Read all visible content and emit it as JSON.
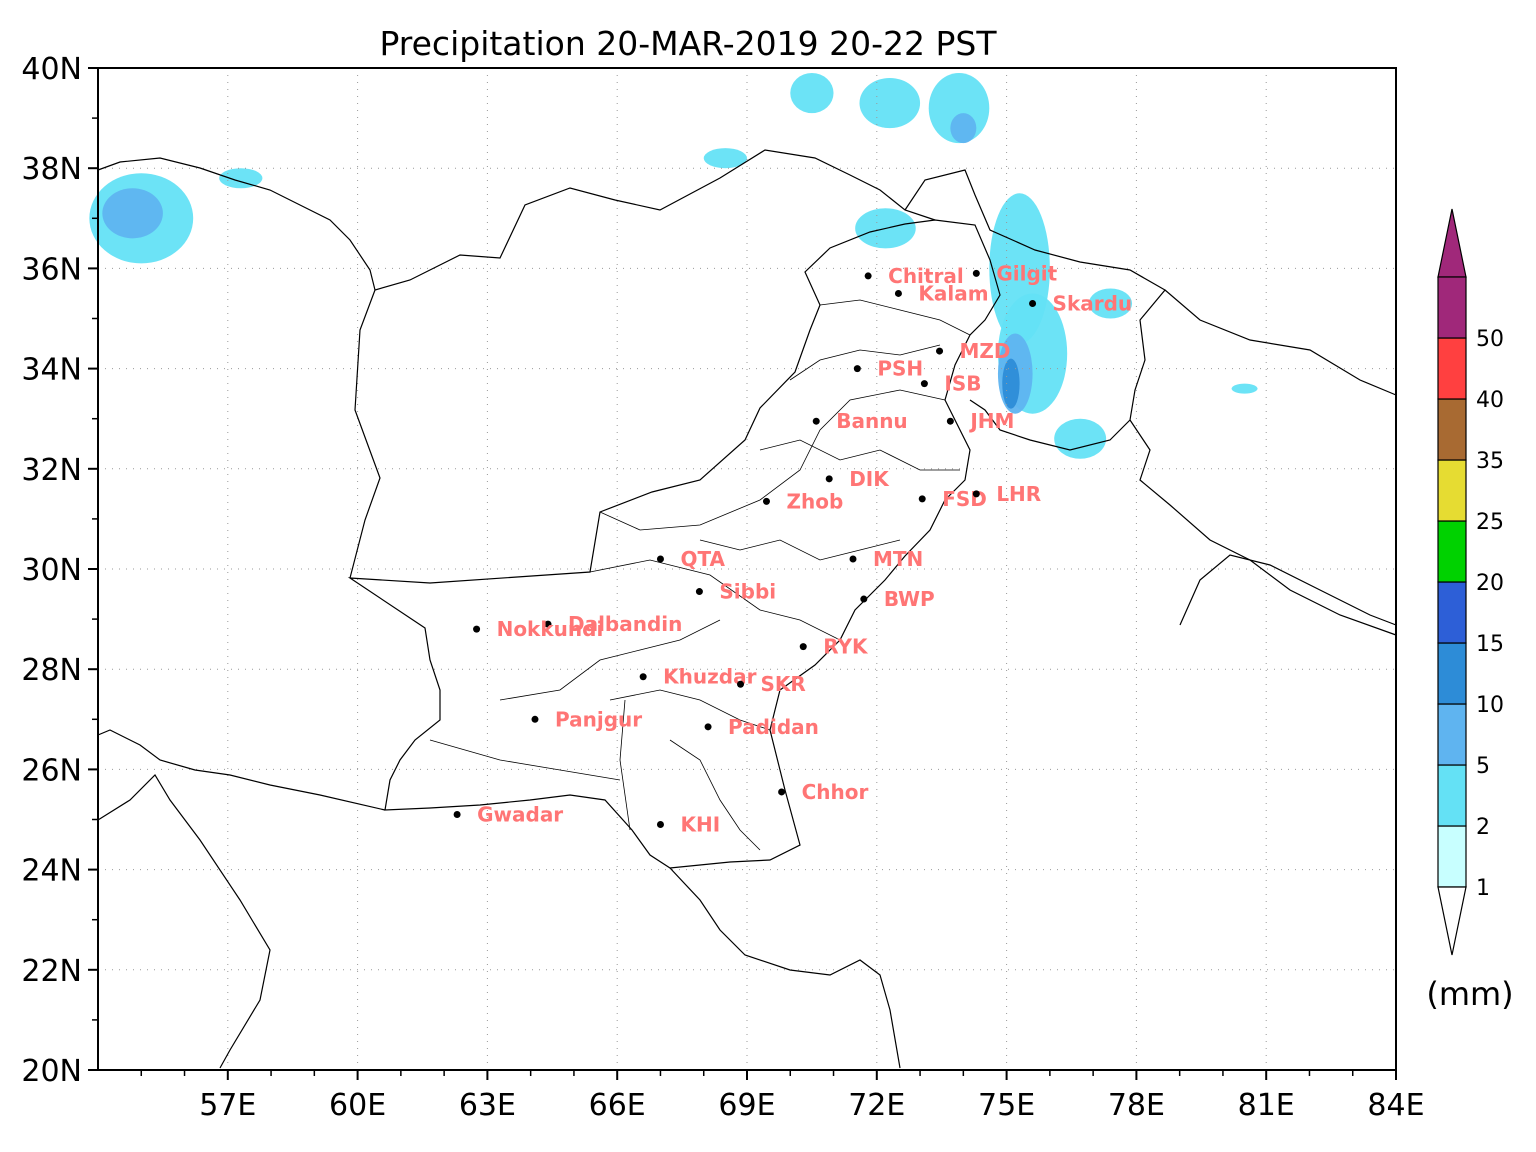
{
  "title": "Precipitation 20-MAR-2019 20-22 PST",
  "unit_label": "(mm)",
  "axes": {
    "lon_range": [
      54,
      84
    ],
    "lat_range": [
      20,
      40
    ],
    "x_ticks": [
      {
        "value": 57,
        "label": "57E"
      },
      {
        "value": 60,
        "label": "60E"
      },
      {
        "value": 63,
        "label": "63E"
      },
      {
        "value": 66,
        "label": "66E"
      },
      {
        "value": 69,
        "label": "69E"
      },
      {
        "value": 72,
        "label": "72E"
      },
      {
        "value": 75,
        "label": "75E"
      },
      {
        "value": 78,
        "label": "78E"
      },
      {
        "value": 81,
        "label": "81E"
      },
      {
        "value": 84,
        "label": "84E"
      }
    ],
    "y_ticks": [
      {
        "value": 40,
        "label": "40N"
      },
      {
        "value": 38,
        "label": "38N"
      },
      {
        "value": 36,
        "label": "36N"
      },
      {
        "value": 34,
        "label": "34N"
      },
      {
        "value": 32,
        "label": "32N"
      },
      {
        "value": 30,
        "label": "30N"
      },
      {
        "value": 28,
        "label": "28N"
      },
      {
        "value": 26,
        "label": "26N"
      },
      {
        "value": 24,
        "label": "24N"
      },
      {
        "value": 22,
        "label": "22N"
      },
      {
        "value": 20,
        "label": "20N"
      }
    ],
    "grid": "dotted"
  },
  "colorbar": {
    "levels": [
      "1",
      "2",
      "5",
      "10",
      "15",
      "20",
      "25",
      "35",
      "40",
      "50"
    ],
    "colors": [
      "#c8ffff",
      "#64e1f5",
      "#5fb4f0",
      "#2d8cd7",
      "#2d5fd7",
      "#00d200",
      "#e6dc32",
      "#a86a32",
      "#ff4040",
      "#a0287a"
    ],
    "below_color": "#ffffff",
    "above_color": "#a0287a"
  },
  "stations": [
    {
      "name": "Chitral",
      "lon": 71.8,
      "lat": 35.85
    },
    {
      "name": "Gilgit",
      "lon": 74.3,
      "lat": 35.9
    },
    {
      "name": "Kalam",
      "lon": 72.5,
      "lat": 35.5
    },
    {
      "name": "Skardu",
      "lon": 75.6,
      "lat": 35.3
    },
    {
      "name": "MZD",
      "lon": 73.45,
      "lat": 34.35
    },
    {
      "name": "PSH",
      "lon": 71.55,
      "lat": 34.0
    },
    {
      "name": "ISB",
      "lon": 73.1,
      "lat": 33.7
    },
    {
      "name": "Bannu",
      "lon": 70.6,
      "lat": 32.95
    },
    {
      "name": "JHM",
      "lon": 73.7,
      "lat": 32.95
    },
    {
      "name": "DIK",
      "lon": 70.9,
      "lat": 31.8
    },
    {
      "name": "FSD",
      "lon": 73.05,
      "lat": 31.4
    },
    {
      "name": "LHR",
      "lon": 74.3,
      "lat": 31.5
    },
    {
      "name": "Zhob",
      "lon": 69.45,
      "lat": 31.35
    },
    {
      "name": "QTA",
      "lon": 67.0,
      "lat": 30.2
    },
    {
      "name": "MTN",
      "lon": 71.45,
      "lat": 30.2
    },
    {
      "name": "Sibbi",
      "lon": 67.9,
      "lat": 29.55
    },
    {
      "name": "BWP",
      "lon": 71.7,
      "lat": 29.4
    },
    {
      "name": "Dalbandin",
      "lon": 64.4,
      "lat": 28.9
    },
    {
      "name": "Nokkundi",
      "lon": 62.75,
      "lat": 28.8
    },
    {
      "name": "RYK",
      "lon": 70.3,
      "lat": 28.45
    },
    {
      "name": "Khuzdar",
      "lon": 66.6,
      "lat": 27.85
    },
    {
      "name": "SKR",
      "lon": 68.85,
      "lat": 27.7
    },
    {
      "name": "Panjgur",
      "lon": 64.1,
      "lat": 27.0
    },
    {
      "name": "Padidan",
      "lon": 68.1,
      "lat": 26.85
    },
    {
      "name": "Chhor",
      "lon": 69.8,
      "lat": 25.55
    },
    {
      "name": "Gwadar",
      "lon": 62.3,
      "lat": 25.1
    },
    {
      "name": "KHI",
      "lon": 67.0,
      "lat": 24.9
    }
  ],
  "precip_areas": [
    {
      "level": "2",
      "lon": 55.0,
      "lat": 37.0,
      "rlon": 1.2,
      "rlat": 0.9
    },
    {
      "level": "5",
      "lon": 54.8,
      "lat": 37.1,
      "rlon": 0.7,
      "rlat": 0.5
    },
    {
      "level": "2",
      "lon": 57.3,
      "lat": 37.8,
      "rlon": 0.5,
      "rlat": 0.2
    },
    {
      "level": "2",
      "lon": 68.5,
      "lat": 38.2,
      "rlon": 0.5,
      "rlat": 0.2
    },
    {
      "level": "2",
      "lon": 70.5,
      "lat": 39.5,
      "rlon": 0.5,
      "rlat": 0.4
    },
    {
      "level": "2",
      "lon": 72.3,
      "lat": 39.3,
      "rlon": 0.7,
      "rlat": 0.5
    },
    {
      "level": "2",
      "lon": 73.9,
      "lat": 39.2,
      "rlon": 0.7,
      "rlat": 0.7
    },
    {
      "level": "5",
      "lon": 74.0,
      "lat": 38.8,
      "rlon": 0.3,
      "rlat": 0.3
    },
    {
      "level": "2",
      "lon": 72.2,
      "lat": 36.8,
      "rlon": 0.7,
      "rlat": 0.4
    },
    {
      "level": "2",
      "lon": 75.3,
      "lat": 36.0,
      "rlon": 0.7,
      "rlat": 1.5
    },
    {
      "level": "2",
      "lon": 75.6,
      "lat": 34.3,
      "rlon": 0.8,
      "rlat": 1.2
    },
    {
      "level": "5",
      "lon": 75.2,
      "lat": 33.9,
      "rlon": 0.4,
      "rlat": 0.8
    },
    {
      "level": "10",
      "lon": 75.1,
      "lat": 33.7,
      "rlon": 0.2,
      "rlat": 0.5
    },
    {
      "level": "2",
      "lon": 76.7,
      "lat": 32.6,
      "rlon": 0.6,
      "rlat": 0.4
    },
    {
      "level": "2",
      "lon": 77.4,
      "lat": 35.3,
      "rlon": 0.5,
      "rlat": 0.3
    },
    {
      "level": "2",
      "lon": 80.5,
      "lat": 33.6,
      "rlon": 0.3,
      "rlat": 0.1
    }
  ]
}
